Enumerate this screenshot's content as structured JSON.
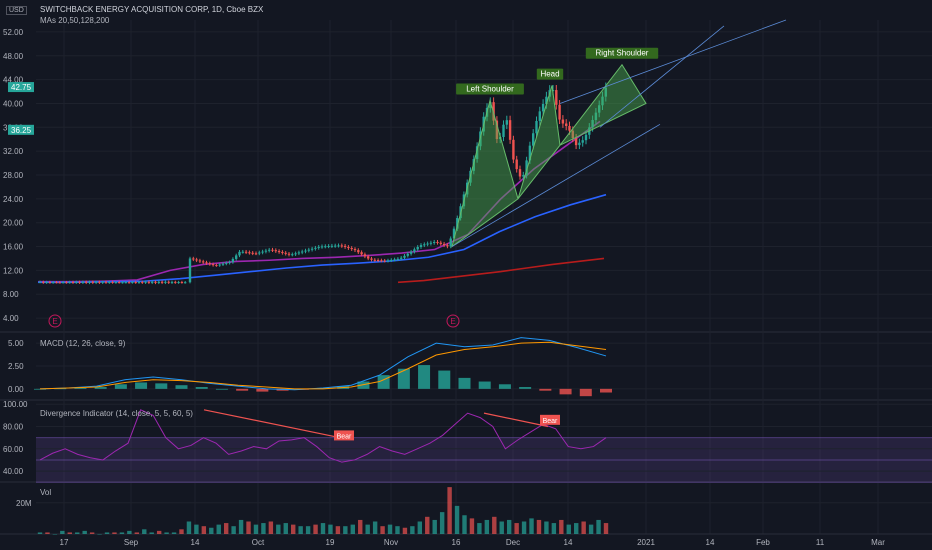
{
  "header": {
    "currency_badge": "USD",
    "title": "SWITCHBACK ENERGY ACQUISITION CORP, 1D, Cboe BZX",
    "ma_label": "MAs 20,50,128,200"
  },
  "price_badges": {
    "last": "42.75",
    "other": "36.25"
  },
  "colors": {
    "background": "#131722",
    "grid": "#1e222d",
    "up": "#26a69a",
    "down": "#ef5350",
    "ma20": "#9c27b0",
    "ma50": "#2962ff",
    "ma200": "#b71c1c",
    "pattern_fill": "#4caf50",
    "osc_band": "#7e57c2",
    "macd_line": "#2196f3",
    "signal_line": "#ff9800"
  },
  "events": [
    "E",
    "E"
  ],
  "pattern_labels": [
    "Left Shoulder",
    "Head",
    "Right Shoulder"
  ],
  "divergence_labels": [
    "Bear",
    "Bear"
  ],
  "chart_data": [
    {
      "type": "candlestick",
      "title": "SWITCHBACK ENERGY ACQUISITION CORP, 1D, Cboe BZX",
      "y_ticks": [
        "52.00",
        "48.00",
        "44.00",
        "40.00",
        "36.00",
        "32.00",
        "28.00",
        "24.00",
        "20.00",
        "16.00",
        "12.00",
        "8.00",
        "4.00"
      ],
      "ylim": [
        2,
        54
      ],
      "x_ticks": [
        "17",
        "Sep",
        "14",
        "Oct",
        "19",
        "Nov",
        "16",
        "Dec",
        "14",
        "2021",
        "14",
        "Feb",
        "11",
        "Mar"
      ],
      "series": [
        {
          "name": "MA 20",
          "values": [
            10.1,
            10.1,
            10.2,
            10.4,
            12.0,
            13.0,
            13.5,
            13.7,
            14.0,
            14.2,
            14.5,
            14.9,
            15.5,
            18.0,
            24.0,
            29.0,
            33.0,
            37.0
          ]
        },
        {
          "name": "MA 50",
          "values": [
            10.0,
            10.0,
            10.1,
            10.2,
            10.6,
            11.2,
            11.8,
            12.4,
            12.9,
            13.2,
            13.6,
            14.2,
            15.5,
            18.5,
            21.0,
            23.0,
            24.7
          ]
        },
        {
          "name": "MA 200",
          "values": [
            10.0,
            10.3,
            10.8,
            11.3,
            11.8,
            12.4,
            13.0,
            13.5,
            14.0
          ]
        }
      ],
      "pattern": {
        "name": "Head and Shoulders",
        "points": [
          {
            "label": "Left Shoulder",
            "value": 40.5
          },
          {
            "label": "Head",
            "value": 43.0
          },
          {
            "label": "Right Shoulder",
            "value": 46.5
          }
        ]
      }
    },
    {
      "type": "bar",
      "title": "MACD (12, 26, close, 9)",
      "y_ticks": [
        "5.00",
        "2.50",
        "0.00"
      ],
      "ylim": [
        -1,
        6
      ],
      "histogram": [
        0.0,
        0.05,
        0.1,
        0.2,
        0.5,
        0.7,
        0.6,
        0.4,
        0.2,
        0.0,
        -0.2,
        -0.3,
        -0.2,
        -0.1,
        0.1,
        0.3,
        0.8,
        1.5,
        2.2,
        2.6,
        2.0,
        1.2,
        0.8,
        0.5,
        0.2,
        -0.2,
        -0.6,
        -0.8,
        -0.4
      ],
      "macd": [
        0.0,
        0.1,
        0.3,
        1.0,
        1.3,
        1.0,
        0.6,
        0.3,
        0.0,
        -0.1,
        0.1,
        0.4,
        1.5,
        3.5,
        5.0,
        4.6,
        4.8,
        5.6,
        5.3,
        4.5,
        3.6
      ],
      "signal": [
        0.0,
        0.1,
        0.2,
        0.7,
        1.0,
        0.9,
        0.7,
        0.4,
        0.2,
        0.0,
        0.0,
        0.2,
        0.8,
        2.2,
        3.7,
        4.3,
        4.6,
        5.0,
        5.1,
        4.7,
        4.3
      ]
    },
    {
      "type": "line",
      "title": "Divergence Indicator (14, close, 5, 5, 60, 5)",
      "y_ticks": [
        "100.00",
        "80.00",
        "60.00",
        "40.00"
      ],
      "ylim": [
        32,
        102
      ],
      "values": [
        50,
        56,
        60,
        55,
        52,
        50,
        58,
        65,
        95,
        90,
        70,
        60,
        63,
        70,
        65,
        55,
        58,
        62,
        60,
        67,
        68,
        70,
        62,
        52,
        48,
        50,
        55,
        62,
        58,
        55,
        60,
        65,
        72,
        82,
        92,
        88,
        80,
        60,
        68,
        75,
        82,
        78,
        62,
        60,
        62,
        70
      ]
    },
    {
      "type": "bar",
      "title": "Vol",
      "y_ticks": [
        "20M"
      ],
      "ylim": [
        0,
        32
      ],
      "values": [
        1,
        1,
        0,
        2,
        1,
        1,
        2,
        1,
        0,
        1,
        1,
        1,
        2,
        1,
        3,
        1,
        2,
        1,
        1,
        3,
        8,
        6,
        5,
        4,
        6,
        7,
        5,
        9,
        8,
        6,
        7,
        8,
        6,
        7,
        6,
        5,
        5,
        6,
        7,
        6,
        5,
        5,
        6,
        9,
        6,
        8,
        5,
        6,
        5,
        4,
        5,
        8,
        11,
        9,
        14,
        30,
        18,
        12,
        10,
        7,
        9,
        11,
        8,
        9,
        7,
        8,
        10,
        9,
        8,
        7,
        9,
        6,
        7,
        8,
        6,
        9,
        7
      ]
    }
  ]
}
